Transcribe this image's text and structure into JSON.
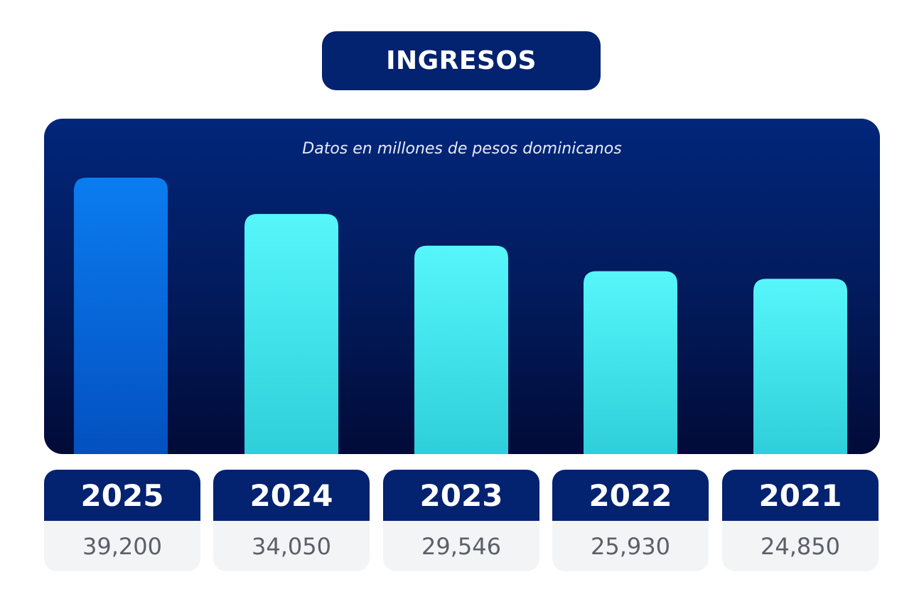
{
  "chart_data": {
    "type": "bar",
    "title": "INGRESOS",
    "subtitle": "Datos en millones de pesos dominicanos",
    "categories": [
      "2025",
      "2024",
      "2023",
      "2022",
      "2021"
    ],
    "values": [
      39200,
      34050,
      29546,
      25930,
      24850
    ],
    "value_labels": [
      "39,200",
      "34,050",
      "29,546",
      "25,930",
      "24,850"
    ],
    "highlight_index": 0,
    "legend": "none",
    "grid": false
  },
  "colors": {
    "title_bg": "#03226f",
    "panel_top": "#02267a",
    "panel_bottom": "#010b38",
    "bar_highlight_top": "#0a7df0",
    "bar_highlight_bottom": "#0450c0",
    "bar_top": "#56f6fb",
    "bar_bottom": "#2ecfd9",
    "card_header": "#03226f",
    "card_body": "#f3f4f6",
    "value_text": "#5b5f68"
  }
}
